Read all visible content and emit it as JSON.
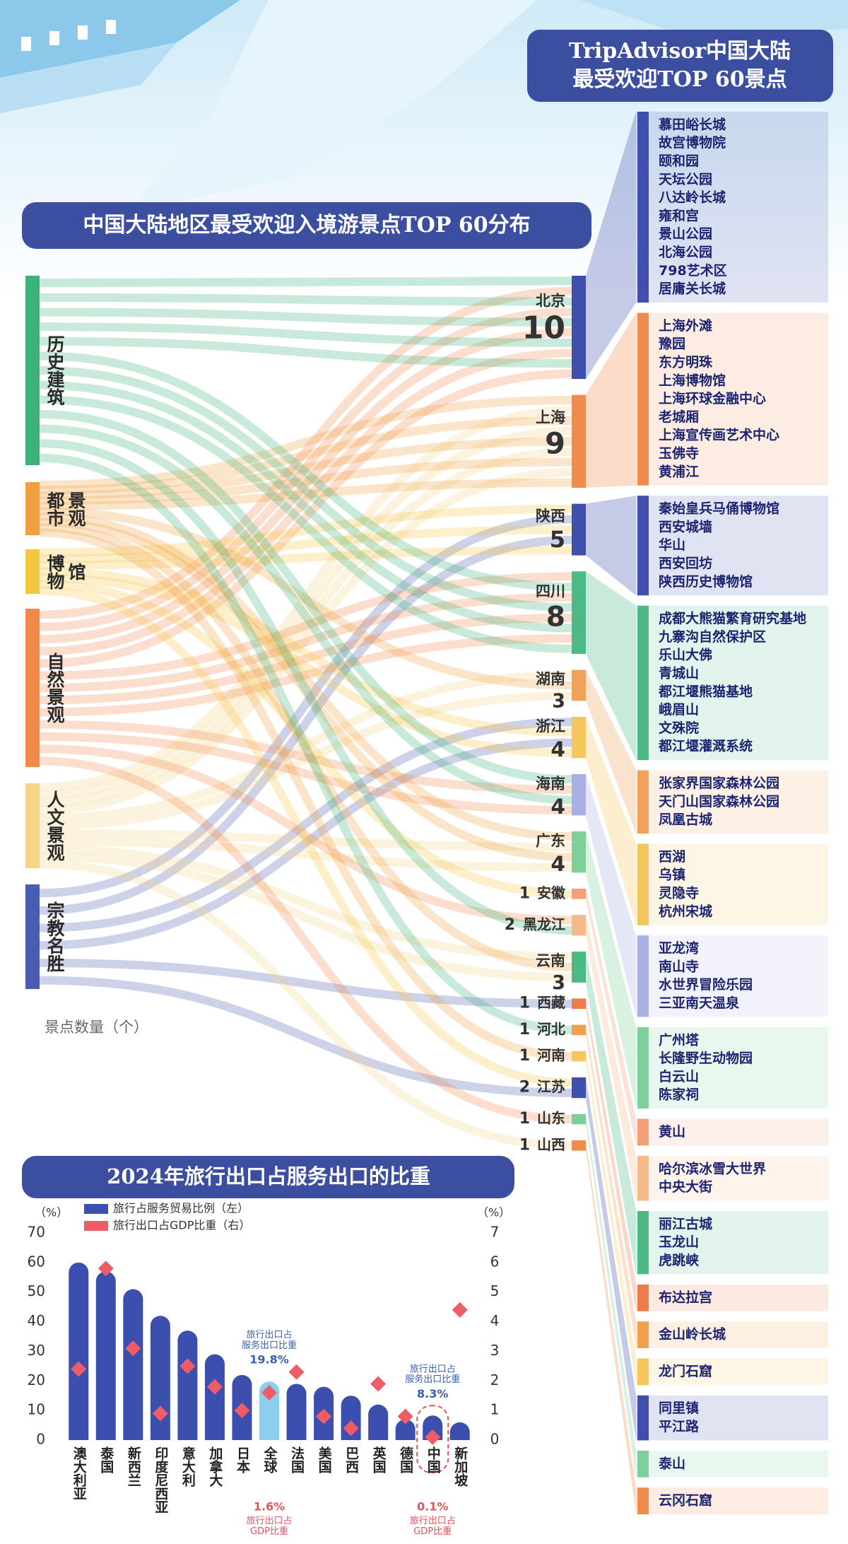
{
  "header": {
    "title_lines": [
      "TripAdvisor中国大陆",
      "最受欢迎TOP 60景点"
    ]
  },
  "chart_data": [
    {
      "type": "sankey",
      "title": "中国大陆地区最受欢迎入境游景点TOP 60分布",
      "sources": [
        "历史建筑",
        "都市景观",
        "博物馆",
        "自然景观",
        "人文景观",
        "宗教名胜"
      ],
      "source_colors": [
        "#3cb27a",
        "#f0a040",
        "#f3c640",
        "#f08a4a",
        "#f6d587",
        "#4a5cb0"
      ],
      "categories": [
        "北京",
        "上海",
        "陕西",
        "四川",
        "湖南",
        "浙江",
        "海南",
        "广东",
        "安徽",
        "黑龙江",
        "云南",
        "西藏",
        "河北",
        "河南",
        "江苏",
        "山东",
        "山西"
      ],
      "values": [
        10,
        9,
        5,
        8,
        3,
        4,
        4,
        4,
        1,
        2,
        3,
        1,
        1,
        1,
        2,
        1,
        1
      ],
      "colors": [
        "#3f4fae",
        "#ef8b4d",
        "#3f4fae",
        "#4dba86",
        "#f0a25a",
        "#f4c75c",
        "#a9b0e3",
        "#7fcf9c",
        "#f3a07a",
        "#f6b98a",
        "#4dba86",
        "#ee7b4a",
        "#f1a050",
        "#f4c75c",
        "#3f4fae",
        "#7fcf9c",
        "#ef8b4d"
      ],
      "attractions": [
        [
          "慕田峪长城",
          "故宫博物院",
          "颐和园",
          "天坛公园",
          "八达岭长城",
          "雍和宫",
          "景山公园",
          "北海公园",
          "798艺术区",
          "居庸关长城"
        ],
        [
          "上海外滩",
          "豫园",
          "东方明珠",
          "上海博物馆",
          "上海环球金融中心",
          "老城厢",
          "上海宣传画艺术中心",
          "玉佛寺",
          "黄浦江"
        ],
        [
          "秦始皇兵马俑博物馆",
          "西安城墙",
          "华山",
          "西安回坊",
          "陕西历史博物馆"
        ],
        [
          "成都大熊猫繁育研究基地",
          "九寨沟自然保护区",
          "乐山大佛",
          "青城山",
          "都江堰熊猫基地",
          "峨眉山",
          "文殊院",
          "都江堰灌溉系统"
        ],
        [
          "张家界国家森林公园",
          "天门山国家森林公园",
          "凤凰古城"
        ],
        [
          "西湖",
          "乌镇",
          "灵隐寺",
          "杭州宋城"
        ],
        [
          "亚龙湾",
          "南山寺",
          "水世界冒险乐园",
          "三亚南天温泉"
        ],
        [
          "广州塔",
          "长隆野生动物园",
          "白云山",
          "陈家祠"
        ],
        [
          "黄山"
        ],
        [
          "哈尔滨冰雪大世界",
          "中央大街"
        ],
        [
          "丽江古城",
          "玉龙山",
          "虎跳峡"
        ],
        [
          "布达拉宫"
        ],
        [
          "金山岭长城"
        ],
        [
          "龙门石窟"
        ],
        [
          "同里镇",
          "平江路"
        ],
        [
          "泰山"
        ],
        [
          "云冈石窟"
        ]
      ],
      "unit_label": "景点数量（个）"
    },
    {
      "type": "bar",
      "title": "2024年旅行出口占服务出口的比重",
      "categories": [
        "澳大利亚",
        "泰国",
        "新西兰",
        "印度尼西亚",
        "意大利",
        "加拿大",
        "日本",
        "全球",
        "法国",
        "美国",
        "巴西",
        "英国",
        "德国",
        "中国",
        "新加坡"
      ],
      "series": [
        {
          "name": "旅行占服务贸易比例（左）",
          "color": "#3c4fae",
          "colors": [
            "#3c4fae",
            "#3c4fae",
            "#3c4fae",
            "#3c4fae",
            "#3c4fae",
            "#3c4fae",
            "#3c4fae",
            "#8dcdee",
            "#3c4fae",
            "#3c4fae",
            "#3c4fae",
            "#3c4fae",
            "#3c4fae",
            "#3c4fae",
            "#3c4fae"
          ],
          "values": [
            60,
            57,
            51,
            42,
            37,
            29,
            22,
            19.8,
            19,
            18,
            15,
            12,
            7,
            8.3,
            6
          ],
          "value_labels": [
            null,
            null,
            null,
            null,
            null,
            null,
            null,
            "19.8%",
            null,
            null,
            null,
            null,
            null,
            "8.3%",
            null
          ],
          "annotation": "旅行出口占服务出口比重"
        },
        {
          "name": "旅行出口占GDP比重（右）",
          "color": "#ee5c68",
          "axis": "y2",
          "values": [
            2.4,
            5.8,
            3.1,
            0.9,
            2.5,
            1.8,
            1.0,
            1.6,
            2.3,
            0.8,
            0.4,
            1.9,
            0.8,
            0.1,
            4.4
          ],
          "value_labels": [
            null,
            null,
            null,
            null,
            null,
            null,
            null,
            "1.6%",
            null,
            null,
            null,
            null,
            null,
            "0.1%",
            null
          ],
          "annotation": "旅行出口占GDP比重"
        }
      ],
      "y_unit_label": "（%）",
      "y2_unit_label": "（%）",
      "ylim": [
        0,
        70
      ],
      "yticks": [
        0,
        10,
        20,
        30,
        40,
        50,
        60,
        70
      ],
      "y2lim": [
        0,
        7
      ],
      "y2ticks": [
        0,
        1,
        2,
        3,
        4,
        5,
        6,
        7
      ]
    }
  ]
}
